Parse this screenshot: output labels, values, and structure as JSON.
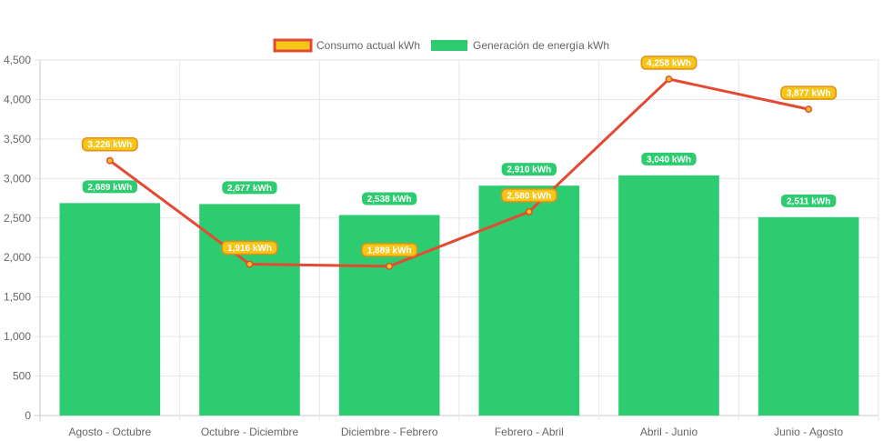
{
  "chart_data": {
    "type": "bar",
    "categories": [
      "Agosto - Octubre",
      "Octubre - Diciembre",
      "Diciembre - Febrero",
      "Febrero - Abril",
      "Abril - Junio",
      "Junio - Agosto"
    ],
    "series": [
      {
        "name": "Consumo actual kWh",
        "type": "line",
        "values": [
          3226,
          1916,
          1889,
          2580,
          4258,
          3877
        ],
        "labels": [
          "3,226 kWh",
          "1,916 kWh",
          "1,889 kWh",
          "2,580 kWh",
          "4,258 kWh",
          "3,877 kWh"
        ],
        "line_color": "#e34a33",
        "fill_color": "#f5c518"
      },
      {
        "name": "Generación de energía kWh",
        "type": "bar",
        "values": [
          2689,
          2677,
          2538,
          2910,
          3040,
          2511
        ],
        "labels": [
          "2,689 kWh",
          "2,677 kWh",
          "2,538 kWh",
          "2,910 kWh",
          "3,040 kWh",
          "2,511 kWh"
        ],
        "color": "#2ecc71"
      }
    ],
    "ylim": [
      0,
      4500
    ],
    "yticks": [
      0,
      500,
      1000,
      1500,
      2000,
      2500,
      3000,
      3500,
      4000,
      4500
    ],
    "ytick_labels": [
      "0",
      "500",
      "1,000",
      "1,500",
      "2,000",
      "2,500",
      "3,000",
      "3,500",
      "4,000",
      "4,500"
    ],
    "grid": true,
    "legend_position": "top-center"
  }
}
